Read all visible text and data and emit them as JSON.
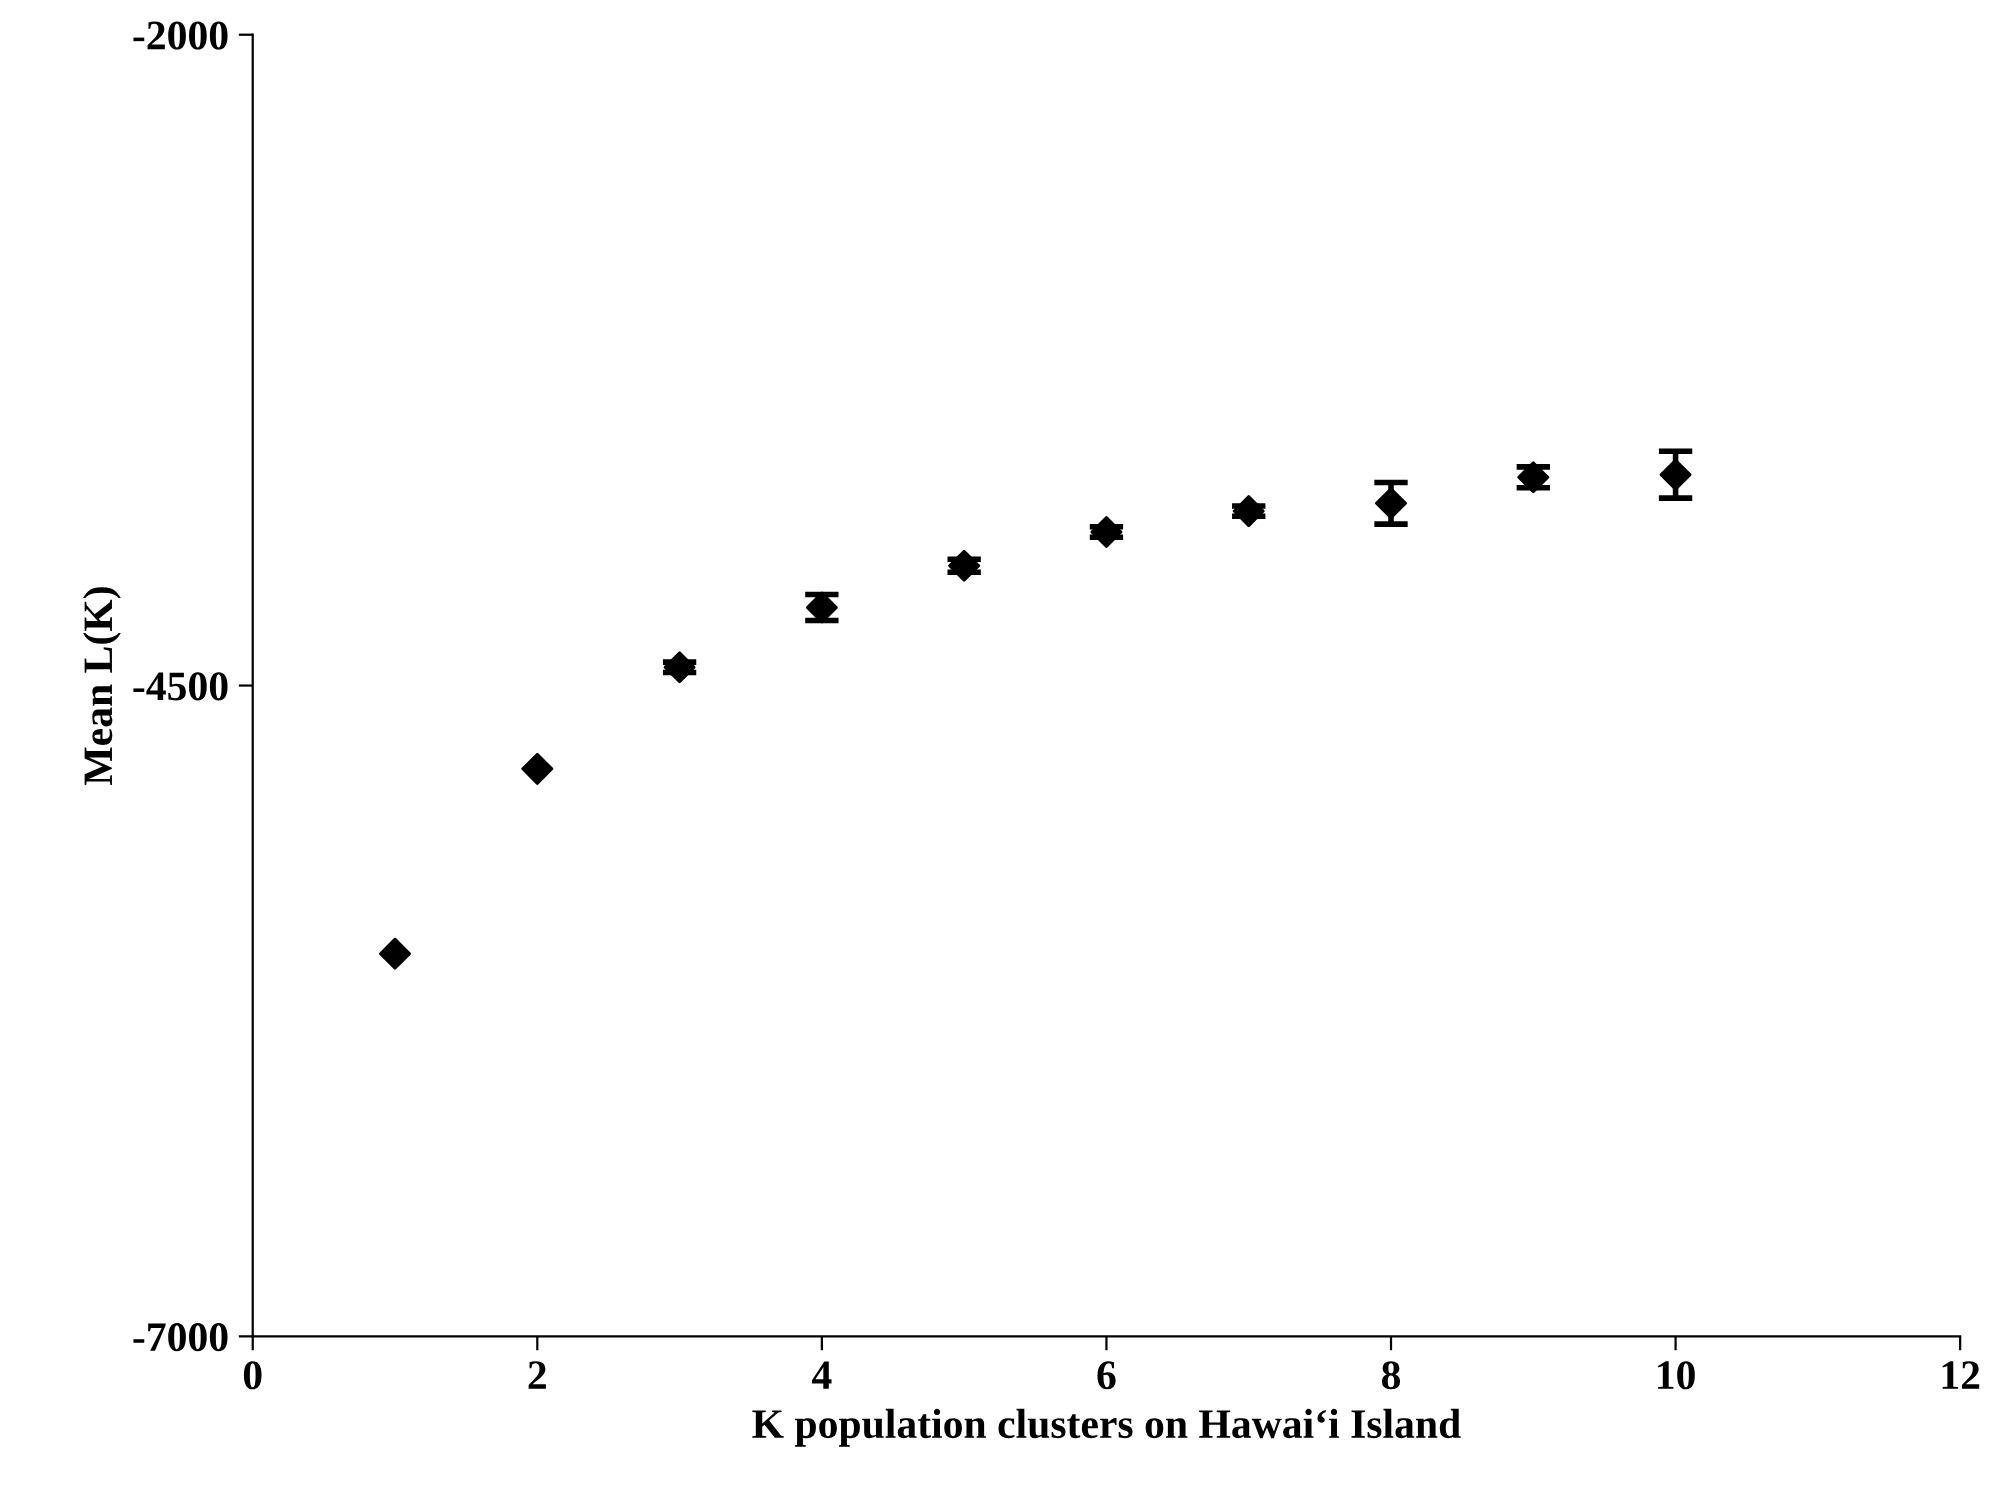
{
  "chart_data": {
    "type": "scatter",
    "xlabel": "K population clusters on Hawai‘i Island",
    "ylabel": "Mean L(K)",
    "x": [
      1,
      2,
      3,
      4,
      5,
      6,
      7,
      8,
      9,
      10
    ],
    "series": [
      {
        "color": "#000000",
        "values": [
          -5530,
          -4820,
          -4430,
          -4200,
          -4040,
          -3910,
          -3830,
          -3800,
          -3700,
          -3690
        ],
        "errors": [
          null,
          null,
          20,
          50,
          25,
          20,
          20,
          80,
          40,
          90
        ]
      }
    ],
    "xlim": [
      0,
      12
    ],
    "xticks": [
      0,
      2,
      4,
      6,
      8,
      10,
      12
    ],
    "ylim": [
      -7000,
      -2000
    ],
    "yticks": [
      -7000,
      -4500,
      -2000
    ],
    "marker": "diamond",
    "grid": false
  }
}
